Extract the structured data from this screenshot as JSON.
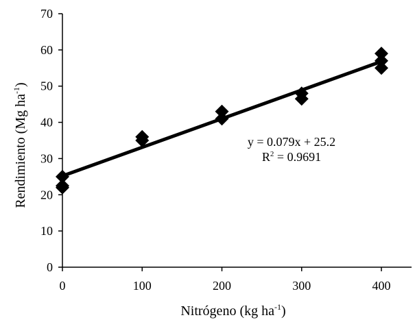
{
  "chart_data": {
    "type": "scatter",
    "title": "",
    "xlabel": {
      "text": "Nitrógeno (kg ha",
      "superscript": "-1",
      "suffix": ")"
    },
    "ylabel": {
      "text": "Rendimiento (Mg ha",
      "superscript": "-1",
      "suffix": ")"
    },
    "xlim": [
      0,
      400
    ],
    "ylim": [
      0,
      70
    ],
    "xticks": [
      0,
      100,
      200,
      300,
      400
    ],
    "yticks": [
      0,
      10,
      20,
      30,
      40,
      50,
      60,
      70
    ],
    "grid": false,
    "legend": "none",
    "marker": "diamond",
    "colors": {
      "marker": "#000000",
      "trendline": "#000000",
      "axis": "#000000"
    },
    "series": [
      {
        "x": [
          0,
          0,
          0,
          100,
          100,
          200,
          200,
          300,
          300,
          400,
          400,
          400
        ],
        "y": [
          25,
          22.5,
          22,
          36,
          35,
          43,
          41,
          48,
          46.5,
          59,
          57,
          55
        ]
      }
    ],
    "trendline": {
      "slope": 0.079,
      "intercept": 25.2,
      "x_range": [
        0,
        400
      ]
    },
    "annotations": {
      "equation": "y = 0.079x + 25.2",
      "r2_label": "R",
      "r2_superscript": "2",
      "r2_value": " = 0.9691"
    }
  }
}
